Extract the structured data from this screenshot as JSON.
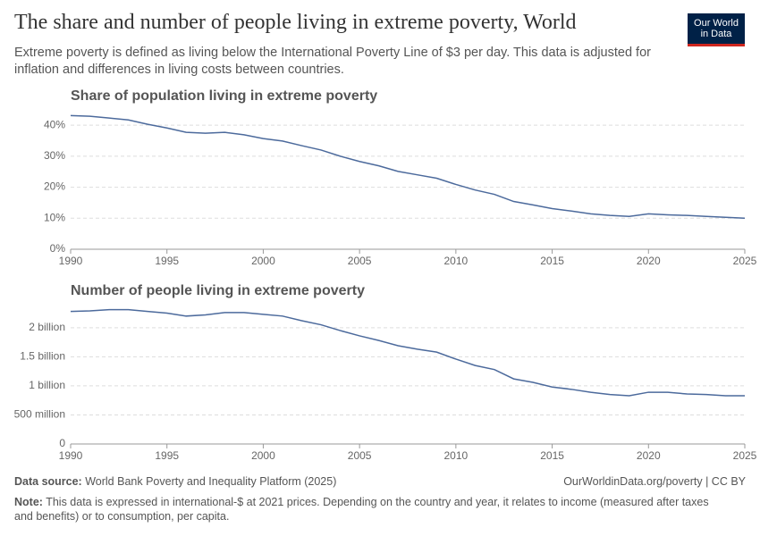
{
  "header": {
    "title": "The share and number of people living in extreme poverty, World",
    "subtitle": "Extreme poverty is defined as living below the International Poverty Line of $3 per day. This data is adjusted for inflation and differences in living costs between countries."
  },
  "logo": {
    "line1": "Our World",
    "line2": "in Data"
  },
  "footer": {
    "source_label": "Data source:",
    "source": "World Bank Poverty and Inequality Platform (2025)",
    "url": "OurWorldinData.org/poverty | CC BY",
    "note_label": "Note:",
    "note": "This data is expressed in international-$ at 2021 prices. Depending on the country and year, it relates to income (measured after taxes and benefits) or to consumption, per capita."
  },
  "chart_data": [
    {
      "type": "line",
      "title": "Share of population living in extreme poverty",
      "color": "#4c6a9c",
      "grid": true,
      "x": [
        1990,
        1991,
        1992,
        1993,
        1994,
        1995,
        1996,
        1997,
        1998,
        1999,
        2000,
        2001,
        2002,
        2003,
        2004,
        2005,
        2006,
        2007,
        2008,
        2009,
        2010,
        2011,
        2012,
        2013,
        2014,
        2015,
        2016,
        2017,
        2018,
        2019,
        2020,
        2021,
        2022,
        2023,
        2024,
        2025
      ],
      "values": [
        43.1,
        42.9,
        42.3,
        41.7,
        40.3,
        39.1,
        37.7,
        37.4,
        37.7,
        36.9,
        35.7,
        34.9,
        33.4,
        32.0,
        30.0,
        28.3,
        26.9,
        25.1,
        24.0,
        22.9,
        20.9,
        19.1,
        17.7,
        15.4,
        14.3,
        13.1,
        12.3,
        11.4,
        10.9,
        10.6,
        11.4,
        11.1,
        10.9,
        10.6,
        10.3,
        10.0
      ],
      "xlim": [
        1990,
        2025
      ],
      "xticks": [
        1990,
        1995,
        2000,
        2005,
        2010,
        2015,
        2020,
        2025
      ],
      "ylim": [
        0,
        43.5
      ],
      "yticks": [
        {
          "value": 0,
          "label": "0%"
        },
        {
          "value": 10,
          "label": "10%"
        },
        {
          "value": 20,
          "label": "20%"
        },
        {
          "value": 30,
          "label": "30%"
        },
        {
          "value": 40,
          "label": "40%"
        }
      ]
    },
    {
      "type": "line",
      "title": "Number of people living in extreme poverty",
      "color": "#4c6a9c",
      "grid": true,
      "x": [
        1990,
        1991,
        1992,
        1993,
        1994,
        1995,
        1996,
        1997,
        1998,
        1999,
        2000,
        2001,
        2002,
        2003,
        2004,
        2005,
        2006,
        2007,
        2008,
        2009,
        2010,
        2011,
        2012,
        2013,
        2014,
        2015,
        2016,
        2017,
        2018,
        2019,
        2020,
        2021,
        2022,
        2023,
        2024,
        2025
      ],
      "values": [
        2280000000,
        2290000000,
        2310000000,
        2310000000,
        2280000000,
        2250000000,
        2200000000,
        2220000000,
        2260000000,
        2260000000,
        2230000000,
        2200000000,
        2120000000,
        2050000000,
        1950000000,
        1860000000,
        1780000000,
        1690000000,
        1630000000,
        1580000000,
        1460000000,
        1350000000,
        1280000000,
        1120000000,
        1060000000,
        980000000,
        940000000,
        890000000,
        850000000,
        830000000,
        890000000,
        890000000,
        860000000,
        850000000,
        830000000,
        830000000
      ],
      "xlim": [
        1990,
        2025
      ],
      "xticks": [
        1990,
        1995,
        2000,
        2005,
        2010,
        2015,
        2020,
        2025
      ],
      "ylim": [
        0,
        2320000000
      ],
      "yticks": [
        {
          "value": 0,
          "label": "0"
        },
        {
          "value": 500000000,
          "label": "500 million"
        },
        {
          "value": 1000000000,
          "label": "1 billion"
        },
        {
          "value": 1500000000,
          "label": "1.5 billion"
        },
        {
          "value": 2000000000,
          "label": "2 billion"
        }
      ]
    }
  ]
}
